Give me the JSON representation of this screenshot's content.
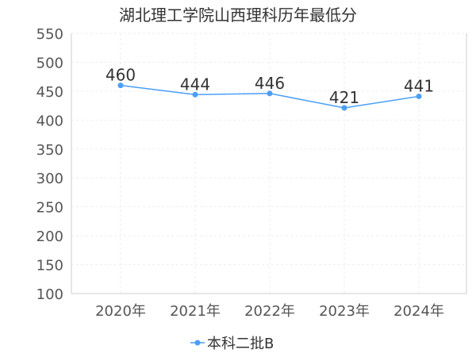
{
  "chart_data": {
    "type": "line",
    "title": "湖北理工学院山西理科历年最低分",
    "categories": [
      "2020年",
      "2021年",
      "2022年",
      "2023年",
      "2024年"
    ],
    "series": [
      {
        "name": "本科二批B",
        "values": [
          460,
          444,
          446,
          421,
          441
        ]
      }
    ],
    "ylim": [
      100,
      550
    ],
    "yticks": [
      100,
      150,
      200,
      250,
      300,
      350,
      400,
      450,
      500,
      550
    ],
    "xlabel": "",
    "ylabel": "",
    "grid": true,
    "legend": "bottom-center",
    "colors": {
      "series": "#4a9ff5",
      "grid": "#eeeeee",
      "axis": "#cccccc"
    }
  }
}
